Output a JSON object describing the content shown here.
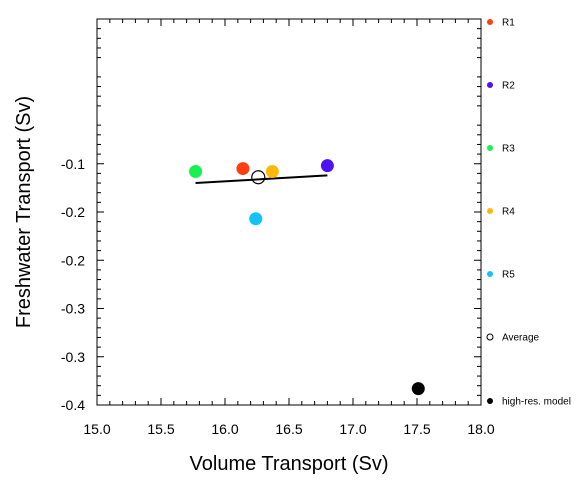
{
  "chart_data": {
    "type": "scatter",
    "xlabel": "Volume Transport (Sv)",
    "ylabel": "Freshwater Transport (Sv)",
    "xlim": [
      15.0,
      18.0
    ],
    "ylim": [
      -0.4,
      -0.0
    ],
    "x_ticks": [
      "15.0",
      "15.5",
      "16.0",
      "16.5",
      "17.0",
      "17.5",
      "18.0"
    ],
    "x_tick_values": [
      15.0,
      15.5,
      16.0,
      16.5,
      17.0,
      17.5,
      18.0
    ],
    "y_ticks": [
      "-0.4",
      "-0.3",
      "-0.3",
      "-0.2",
      "-0.2",
      "-0.1"
    ],
    "y_tick_values": [
      -0.4,
      -0.35,
      -0.3,
      -0.25,
      -0.2,
      -0.15
    ],
    "grid": false,
    "legend_position": "right",
    "series": [
      {
        "name": "R1",
        "x": 16.14,
        "y": -0.155,
        "color": "#ff3f12",
        "marker": "filled-circle"
      },
      {
        "name": "R2",
        "x": 16.8,
        "y": -0.152,
        "color": "#4f12f3",
        "marker": "filled-circle"
      },
      {
        "name": "R3",
        "x": 15.77,
        "y": -0.158,
        "color": "#19f153",
        "marker": "filled-circle"
      },
      {
        "name": "R4",
        "x": 16.37,
        "y": -0.158,
        "color": "#fdb90b",
        "marker": "filled-circle"
      },
      {
        "name": "R5",
        "x": 16.24,
        "y": -0.207,
        "color": "#12c2f9",
        "marker": "filled-circle"
      },
      {
        "name": "Average",
        "x": 16.26,
        "y": -0.164,
        "color": "#000000",
        "marker": "open-circle"
      },
      {
        "name": "high-res. model",
        "x": 17.51,
        "y": -0.383,
        "color": "#000000",
        "marker": "filled-circle"
      }
    ],
    "fit_line": {
      "x": [
        15.77,
        16.8
      ],
      "y": [
        -0.17,
        -0.162
      ],
      "color": "#000000"
    }
  }
}
